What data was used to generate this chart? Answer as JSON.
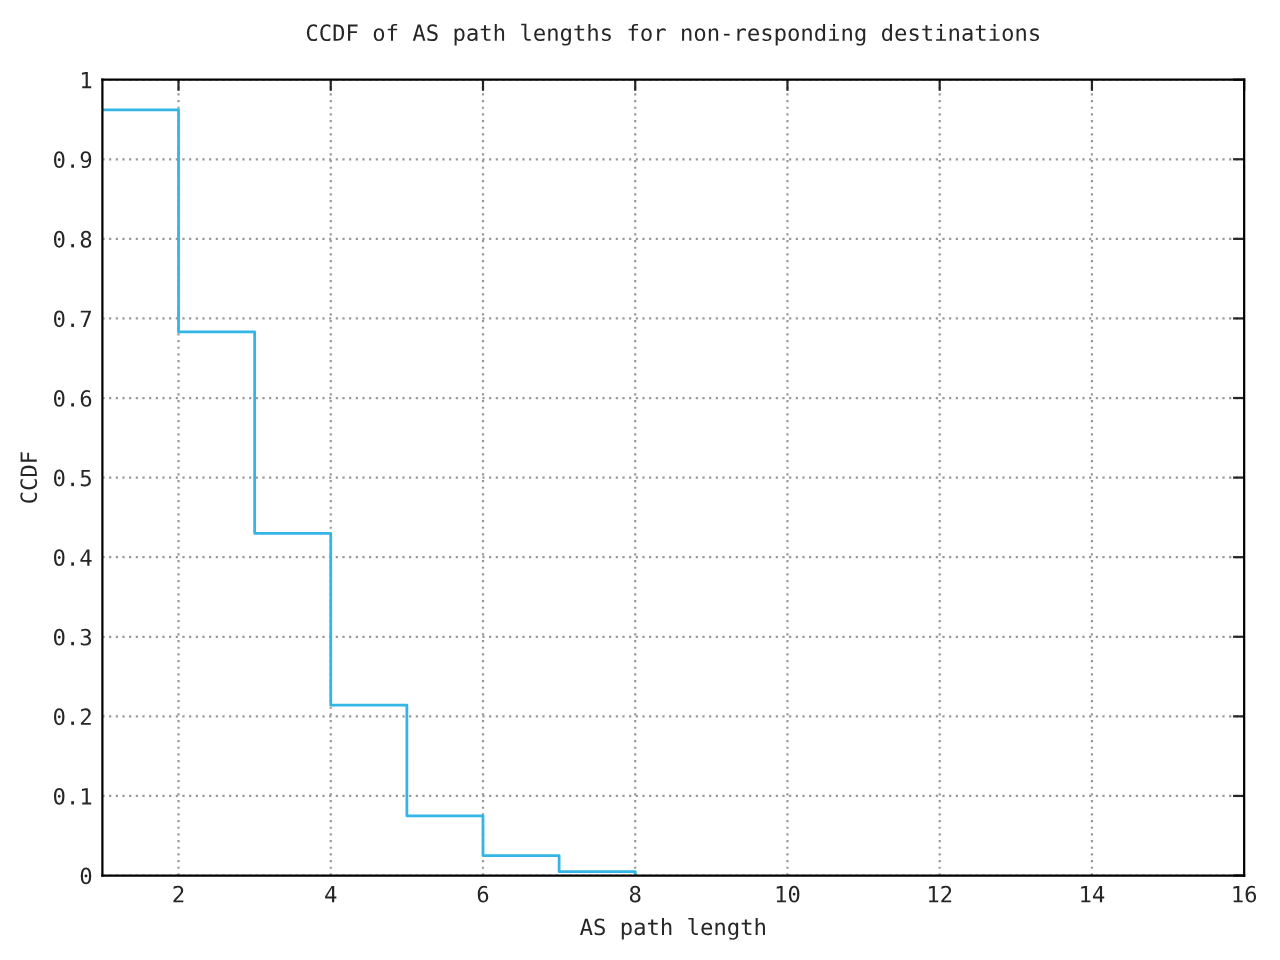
{
  "chart_data": {
    "type": "step",
    "title": "CCDF of AS path lengths for non-responding destinations",
    "xlabel": "AS path length",
    "ylabel": "CCDF",
    "x": [
      1,
      2,
      3,
      4,
      5,
      6,
      7,
      8
    ],
    "series": [
      {
        "color": "#33b5e5",
        "values": [
          0.962,
          0.683,
          0.43,
          0.214,
          0.075,
          0.025,
          0.005,
          0
        ]
      }
    ],
    "xlim": [
      1,
      16
    ],
    "xticks": [
      2,
      4,
      6,
      8,
      10,
      12,
      14,
      16
    ],
    "ylim": [
      0,
      1
    ],
    "yticks": [
      0,
      0.1,
      0.2,
      0.3,
      0.4,
      0.5,
      0.6,
      0.7,
      0.8,
      0.9,
      1
    ],
    "grid": true
  }
}
